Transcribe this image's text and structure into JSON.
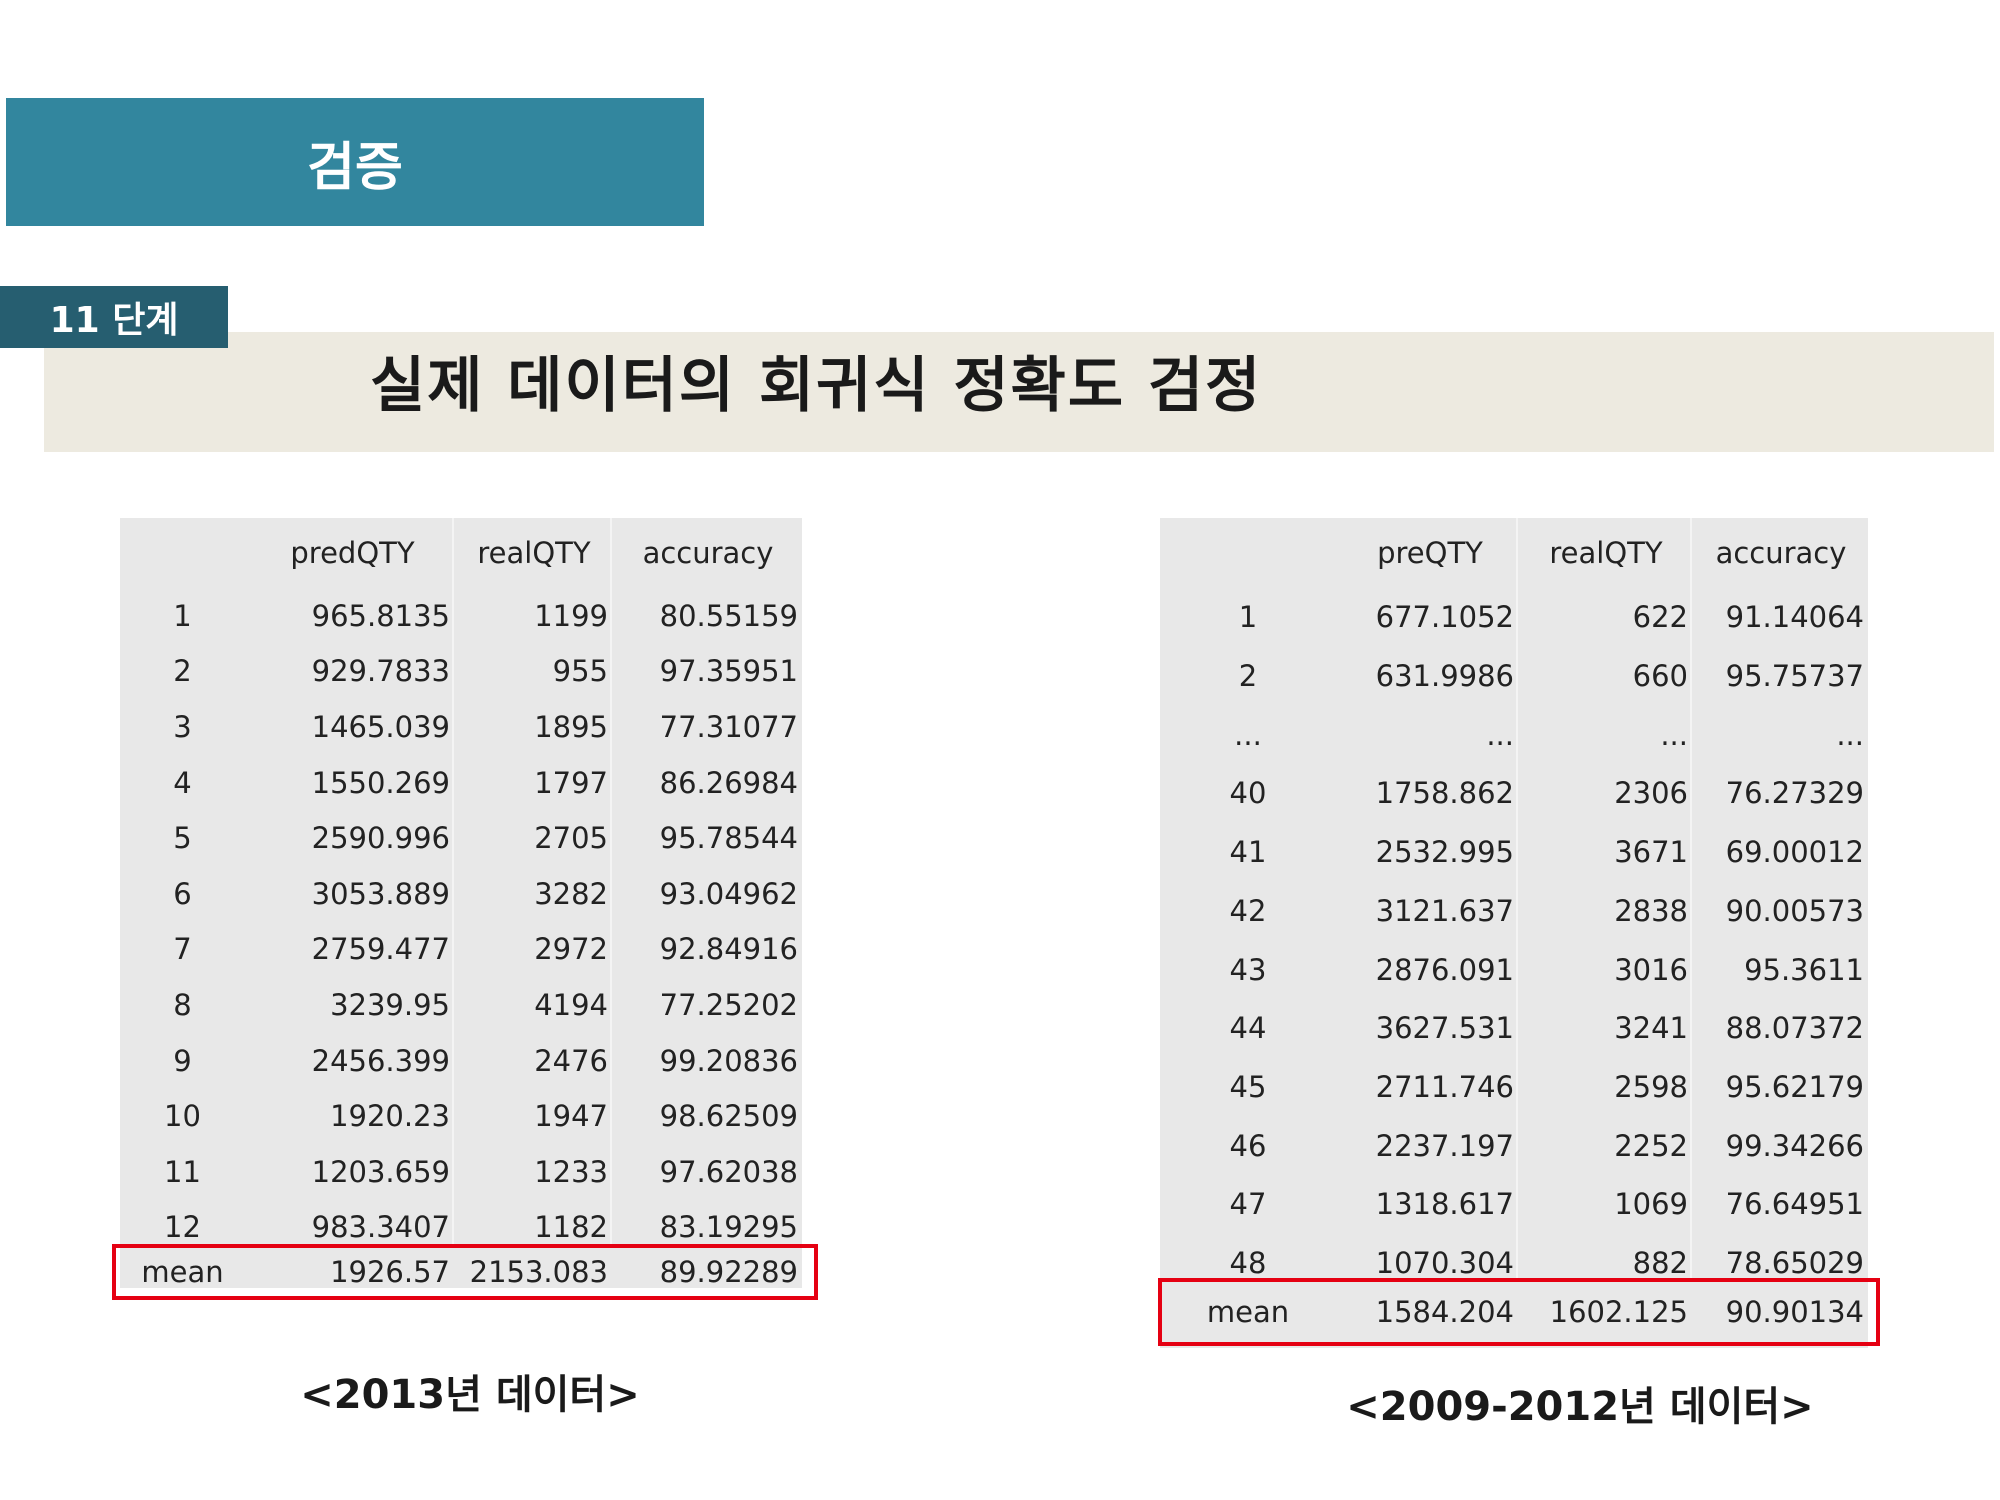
{
  "header": {
    "title": "검증"
  },
  "step": {
    "label": "11 단계"
  },
  "subtitle": "실제 데이터의 회귀식 정확도 검정",
  "left_table": {
    "columns": [
      "",
      "predQTY",
      "realQTY",
      "accuracy"
    ],
    "rows": [
      [
        "1",
        "965.8135",
        "1199",
        "80.55159"
      ],
      [
        "2",
        "929.7833",
        "955",
        "97.35951"
      ],
      [
        "3",
        "1465.039",
        "1895",
        "77.31077"
      ],
      [
        "4",
        "1550.269",
        "1797",
        "86.26984"
      ],
      [
        "5",
        "2590.996",
        "2705",
        "95.78544"
      ],
      [
        "6",
        "3053.889",
        "3282",
        "93.04962"
      ],
      [
        "7",
        "2759.477",
        "2972",
        "92.84916"
      ],
      [
        "8",
        "3239.95",
        "4194",
        "77.25202"
      ],
      [
        "9",
        "2456.399",
        "2476",
        "99.20836"
      ],
      [
        "10",
        "1920.23",
        "1947",
        "98.62509"
      ],
      [
        "11",
        "1203.659",
        "1233",
        "97.62038"
      ],
      [
        "12",
        "983.3407",
        "1182",
        "83.19295"
      ]
    ],
    "mean": [
      "mean",
      "1926.57",
      "2153.083",
      "89.92289"
    ],
    "caption": "<2013년 데이터>"
  },
  "right_table": {
    "columns": [
      "",
      "preQTY",
      "realQTY",
      "accuracy"
    ],
    "rows": [
      [
        "1",
        "677.1052",
        "622",
        "91.14064"
      ],
      [
        "2",
        "631.9986",
        "660",
        "95.75737"
      ],
      [
        "...",
        "...",
        "...",
        "..."
      ],
      [
        "40",
        "1758.862",
        "2306",
        "76.27329"
      ],
      [
        "41",
        "2532.995",
        "3671",
        "69.00012"
      ],
      [
        "42",
        "3121.637",
        "2838",
        "90.00573"
      ],
      [
        "43",
        "2876.091",
        "3016",
        "95.3611"
      ],
      [
        "44",
        "3627.531",
        "3241",
        "88.07372"
      ],
      [
        "45",
        "2711.746",
        "2598",
        "95.62179"
      ],
      [
        "46",
        "2237.197",
        "2252",
        "99.34266"
      ],
      [
        "47",
        "1318.617",
        "1069",
        "76.64951"
      ],
      [
        "48",
        "1070.304",
        "882",
        "78.65029"
      ]
    ],
    "mean": [
      "mean",
      "1584.204",
      "1602.125",
      "90.90134"
    ],
    "caption": "<2009-2012년 데이터>"
  }
}
